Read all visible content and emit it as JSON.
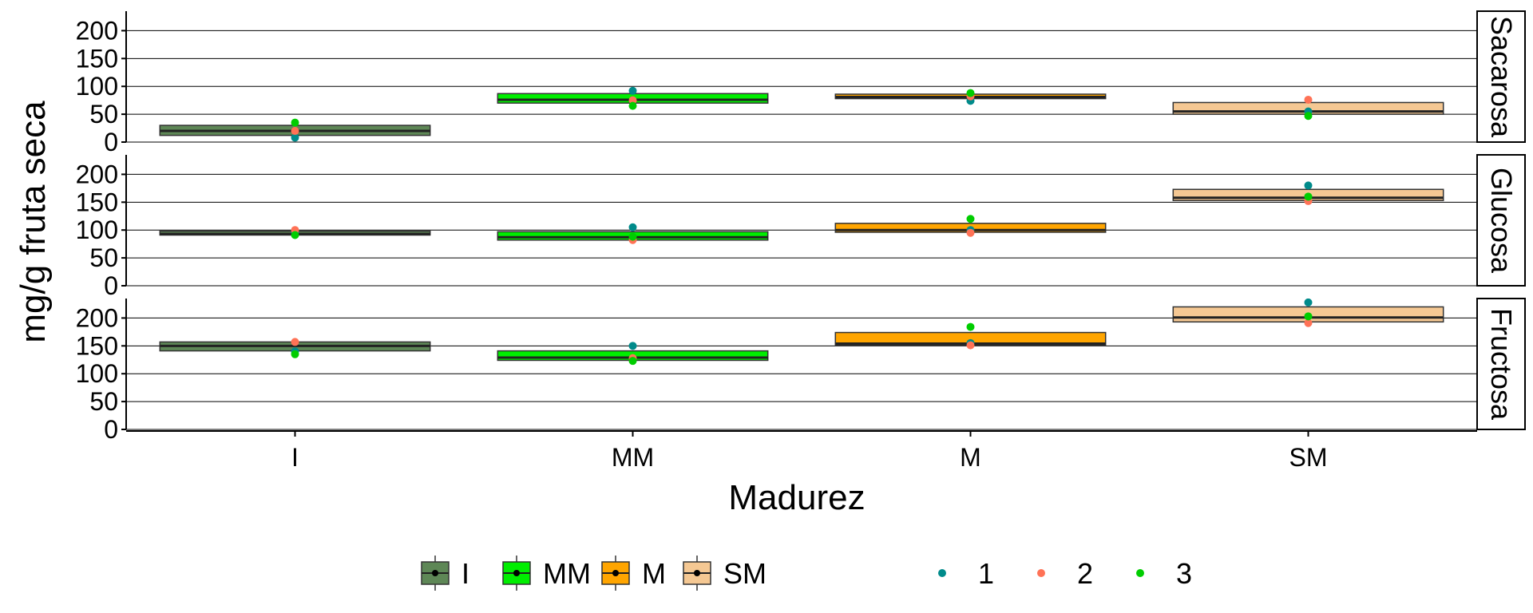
{
  "chart_data": {
    "type": "box",
    "xlabel": "Madurez",
    "ylabel": "mg/g fruta seca",
    "categories": [
      "I",
      "MM",
      "M",
      "SM"
    ],
    "yticks": [
      0,
      50,
      100,
      150,
      200
    ],
    "ylim": [
      0,
      235
    ],
    "grid": "horizontal major lines",
    "legend_position": "bottom",
    "colors": {
      "I": "#5e8756",
      "MM": "#00ee00",
      "M": "#ffa500",
      "SM": "#f5c893",
      "rep_1": "#008b8b",
      "rep_2": "#ff7256",
      "rep_3": "#00cd00"
    },
    "fill_legend": {
      "items": [
        "I",
        "MM",
        "M",
        "SM"
      ]
    },
    "point_legend": {
      "items": [
        "1",
        "2",
        "3"
      ]
    },
    "panels": [
      {
        "label": "Sacarosa",
        "boxes": [
          {
            "category": "I",
            "q1": 12,
            "median": 20,
            "q3": 30,
            "points": [
              8,
              20,
              35
            ]
          },
          {
            "category": "MM",
            "q1": 70,
            "median": 76,
            "q3": 87,
            "points": [
              92,
              75,
              65
            ]
          },
          {
            "category": "M",
            "q1": 78,
            "median": 81,
            "q3": 86,
            "points": [
              74,
              82,
              88
            ]
          },
          {
            "category": "SM",
            "q1": 50,
            "median": 55,
            "q3": 71,
            "points": [
              55,
              76,
              47
            ]
          }
        ]
      },
      {
        "label": "Glucosa",
        "boxes": [
          {
            "category": "I",
            "q1": 91,
            "median": 93,
            "q3": 98,
            "points": [
              96,
              100,
              91
            ]
          },
          {
            "category": "MM",
            "q1": 82,
            "median": 87,
            "q3": 97,
            "points": [
              105,
              82,
              88
            ]
          },
          {
            "category": "M",
            "q1": 96,
            "median": 100,
            "q3": 112,
            "points": [
              100,
              95,
              120
            ]
          },
          {
            "category": "SM",
            "q1": 153,
            "median": 158,
            "q3": 173,
            "points": [
              180,
              152,
              160
            ]
          }
        ]
      },
      {
        "label": "Fructosa",
        "boxes": [
          {
            "category": "I",
            "q1": 141,
            "median": 150,
            "q3": 157,
            "points": [
              140,
              157,
              135
            ]
          },
          {
            "category": "MM",
            "q1": 124,
            "median": 129,
            "q3": 141,
            "points": [
              150,
              128,
              123
            ]
          },
          {
            "category": "M",
            "q1": 151,
            "median": 154,
            "q3": 174,
            "points": [
              155,
              151,
              184
            ]
          },
          {
            "category": "SM",
            "q1": 193,
            "median": 201,
            "q3": 220,
            "points": [
              228,
              191,
              203
            ]
          }
        ]
      }
    ]
  }
}
